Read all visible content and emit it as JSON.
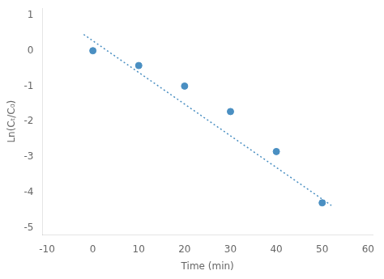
{
  "chart_data": {
    "type": "scatter",
    "xlabel": "Time (min)",
    "ylabel": "Ln(Cₜ/C₀)",
    "series": [
      {
        "type": "scatter",
        "color": "#4a8fc2",
        "marker": "circle",
        "x": [
          0,
          10,
          20,
          30,
          40,
          50
        ],
        "values": [
          0.0,
          -0.42,
          -1.0,
          -1.72,
          -2.85,
          -4.3
        ]
      },
      {
        "type": "line",
        "color": "#4a8fc2",
        "line_style": "dotted",
        "x": [
          -2,
          52
        ],
        "values": [
          0.459,
          -4.374
        ]
      }
    ],
    "xlim": [
      -11,
      61
    ],
    "xticks": [
      -10,
      0,
      10,
      20,
      30,
      40,
      50,
      60
    ],
    "ylim": [
      -5.2,
      1.2
    ],
    "yticks": [
      1,
      0,
      -1,
      -2,
      -3,
      -4,
      -5
    ],
    "grid": false
  }
}
